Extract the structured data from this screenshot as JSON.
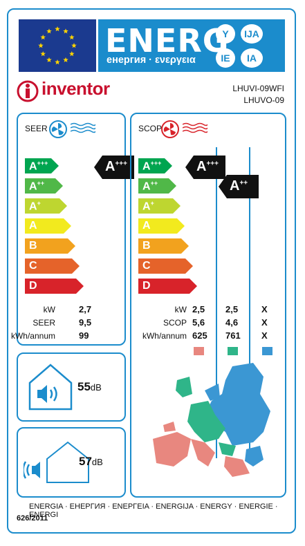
{
  "header": {
    "energ_word": "ENERG",
    "energ_subtitle": "енергия · ενεργεια",
    "lang_codes": [
      "Y",
      "IJA",
      "IE",
      "IA"
    ]
  },
  "brand": {
    "name": "inventor",
    "models": [
      "LHUVI-09WFI",
      "LHUVO-09"
    ]
  },
  "seer_panel": {
    "title": "SEER",
    "classes": [
      "A+++",
      "A++",
      "A+",
      "A",
      "B",
      "C",
      "D"
    ],
    "rating": "A+++",
    "rows": [
      {
        "label": "kW",
        "value": "2,7"
      },
      {
        "label": "SEER",
        "value": "9,5"
      },
      {
        "label": "kWh/annum",
        "value": "99"
      }
    ]
  },
  "scop_panel": {
    "title": "SCOP",
    "classes": [
      "A+++",
      "A++",
      "A+",
      "A",
      "B",
      "C",
      "D"
    ],
    "ratings": [
      "A+++",
      "A++"
    ],
    "rows": [
      {
        "label": "kW",
        "values": [
          "2,5",
          "2,5",
          "X"
        ]
      },
      {
        "label": "SCOP",
        "values": [
          "5,6",
          "4,6",
          "X"
        ]
      },
      {
        "label": "kWh/annum",
        "values": [
          "625",
          "761",
          "X"
        ]
      }
    ],
    "zone_colors": [
      "#e8877f",
      "#2fb589",
      "#3b97d3"
    ]
  },
  "noise": {
    "indoor_value": "55",
    "outdoor_value": "57",
    "unit": "dB"
  },
  "footer": {
    "languages": "ENERGIA · ЕНЕРГИЯ · ΕΝΕΡΓΕΙΑ · ENERGIJA · ENERGY · ENERGIE · ENERGI",
    "regulation": "626/2011"
  },
  "colors": {
    "border": "#1b8ccc",
    "class_colors": [
      "#00a550",
      "#50b848",
      "#bed630",
      "#f2ea1e",
      "#f2a21e",
      "#e5632a",
      "#d8232a"
    ],
    "brand": "#c8102e"
  }
}
